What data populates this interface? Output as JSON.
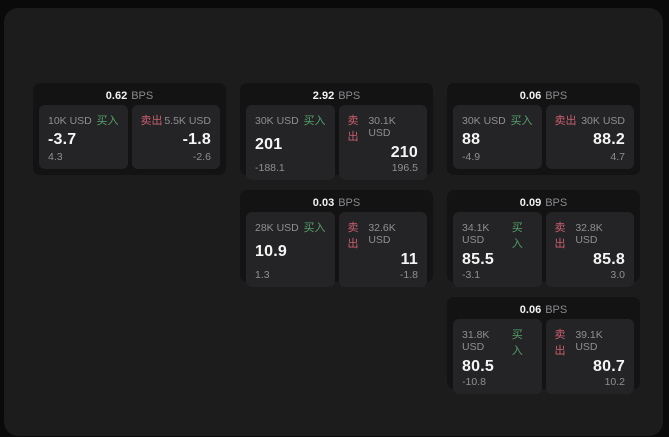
{
  "labels": {
    "buy": "买入",
    "sell": "卖出",
    "bps_unit": "BPS"
  },
  "colors": {
    "background": "#0a0a0b",
    "panel": "#1c1c1d",
    "card": "#131314",
    "tile": "#242426",
    "text_primary": "#f2f2f2",
    "text_secondary": "#8f8f93",
    "buy_green": "#55a06c",
    "sell_red": "#cb5e6e"
  },
  "cards": [
    {
      "bps": "0.62",
      "buy": {
        "amount": "10K USD",
        "price": "-3.7",
        "change": "4.3"
      },
      "sell": {
        "amount": "5.5K USD",
        "price": "-1.8",
        "change": "-2.6"
      }
    },
    {
      "bps": "2.92",
      "buy": {
        "amount": "30K USD",
        "price": "201",
        "change": "-188.1"
      },
      "sell": {
        "amount": "30.1K USD",
        "price": "210",
        "change": "196.5"
      }
    },
    {
      "bps": "0.06",
      "buy": {
        "amount": "30K USD",
        "price": "88",
        "change": "-4.9"
      },
      "sell": {
        "amount": "30K USD",
        "price": "88.2",
        "change": "4.7"
      }
    },
    {
      "bps": "0.03",
      "buy": {
        "amount": "28K USD",
        "price": "10.9",
        "change": "1.3"
      },
      "sell": {
        "amount": "32.6K USD",
        "price": "11",
        "change": "-1.8"
      }
    },
    {
      "bps": "0.09",
      "buy": {
        "amount": "34.1K USD",
        "price": "85.5",
        "change": "-3.1"
      },
      "sell": {
        "amount": "32.8K USD",
        "price": "85.8",
        "change": "3.0"
      }
    },
    {
      "bps": "0.06",
      "buy": {
        "amount": "31.8K USD",
        "price": "80.5",
        "change": "-10.8"
      },
      "sell": {
        "amount": "39.1K USD",
        "price": "80.7",
        "change": "10.2"
      }
    }
  ]
}
